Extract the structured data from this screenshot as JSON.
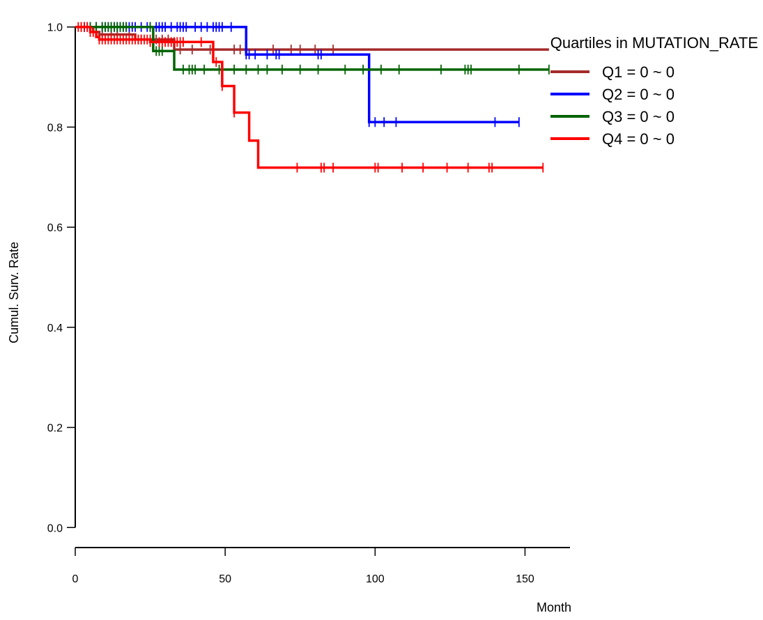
{
  "chart_data": {
    "type": "line",
    "subtype": "kaplan-meier step",
    "xlabel": "Month",
    "ylabel": "Cumul. Surv. Rate",
    "xlim": [
      0,
      165
    ],
    "ylim": [
      -0.04,
      1.04
    ],
    "xticks": [
      0,
      50,
      100,
      150
    ],
    "yticks": [
      0.0,
      0.2,
      0.4,
      0.6,
      0.8,
      1.0
    ],
    "ytick_labels": [
      "0.0",
      "0.2",
      "0.4",
      "0.6",
      "0.8",
      "1.0"
    ],
    "grid": false,
    "legend": {
      "title": "Quartiles in MUTATION_RATE",
      "position": "top-right"
    },
    "series": [
      {
        "name": "Q1 = 0 ~ 0",
        "color": "#a52a2a",
        "steps": [
          [
            0,
            1.0
          ],
          [
            6,
            0.99
          ],
          [
            8,
            0.985
          ],
          [
            20,
            0.975
          ],
          [
            33,
            0.955
          ],
          [
            158,
            0.955
          ]
        ],
        "censored": [
          2,
          3,
          5,
          7,
          9,
          12,
          14,
          18,
          21,
          22,
          25,
          27,
          29,
          31,
          35,
          39,
          45,
          53,
          55,
          57,
          66,
          72,
          75,
          80,
          86
        ]
      },
      {
        "name": "Q2 = 0 ~ 0",
        "color": "#0000ff",
        "steps": [
          [
            0,
            1.0
          ],
          [
            57,
            0.945
          ],
          [
            98,
            0.81
          ],
          [
            148,
            0.81
          ]
        ],
        "censored": [
          3,
          4,
          7,
          9,
          10,
          11,
          12,
          13,
          14,
          15,
          16,
          17,
          18,
          19,
          20,
          22,
          24,
          25,
          27,
          28,
          29,
          30,
          32,
          34,
          35,
          36,
          37,
          40,
          42,
          44,
          46,
          47,
          48,
          49,
          52,
          57,
          58,
          60,
          64,
          67,
          68,
          81,
          82,
          98,
          100,
          103,
          107,
          140,
          148
        ]
      },
      {
        "name": "Q3 = 0 ~ 0",
        "color": "#006400",
        "steps": [
          [
            0,
            1.0
          ],
          [
            26,
            0.952
          ],
          [
            33,
            0.915
          ],
          [
            158,
            0.915
          ]
        ],
        "censored": [
          5,
          7,
          9,
          10,
          11,
          12,
          13,
          14,
          15,
          16,
          17,
          25,
          27,
          28,
          29,
          36,
          38,
          39,
          40,
          43,
          48,
          53,
          57,
          61,
          64,
          69,
          75,
          81,
          90,
          96,
          102,
          108,
          122,
          130,
          131,
          132,
          148,
          158
        ]
      },
      {
        "name": "Q4 = 0 ~ 0",
        "color": "#ff0000",
        "steps": [
          [
            0,
            1.0
          ],
          [
            5,
            0.99
          ],
          [
            7,
            0.98
          ],
          [
            8,
            0.975
          ],
          [
            25,
            0.97
          ],
          [
            27,
            0.97
          ],
          [
            46,
            0.93
          ],
          [
            49,
            0.882
          ],
          [
            53,
            0.829
          ],
          [
            58,
            0.773
          ],
          [
            61,
            0.719
          ],
          [
            156,
            0.719
          ]
        ],
        "censored": [
          1,
          2,
          3,
          4,
          5,
          6,
          8,
          9,
          10,
          11,
          12,
          13,
          14,
          15,
          16,
          17,
          18,
          19,
          20,
          21,
          22,
          23,
          24,
          25,
          28,
          29,
          30,
          31,
          32,
          33,
          34,
          35,
          36,
          42,
          47,
          49,
          53,
          74,
          82,
          83,
          86,
          100,
          101,
          109,
          116,
          124,
          131,
          138,
          139,
          156
        ]
      }
    ]
  }
}
